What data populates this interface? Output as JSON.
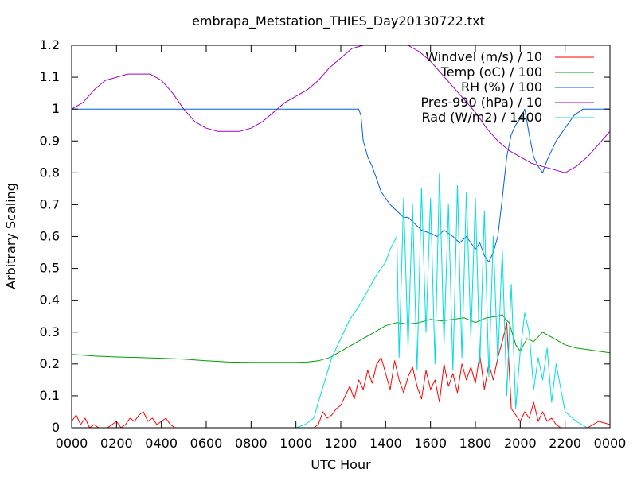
{
  "chart_data": {
    "type": "line",
    "title": "embrapa_Metstation_THIES_Day20130722.txt",
    "xlabel": "UTC Hour",
    "ylabel": "Arbitrary Scaling",
    "xlim": [
      0,
      24
    ],
    "ylim": [
      0,
      1.2
    ],
    "grid": false,
    "legend_position": "top-right",
    "x_ticks": [
      {
        "value": 0,
        "label": "0000"
      },
      {
        "value": 2,
        "label": "0200"
      },
      {
        "value": 4,
        "label": "0400"
      },
      {
        "value": 6,
        "label": "0600"
      },
      {
        "value": 8,
        "label": "0800"
      },
      {
        "value": 10,
        "label": "1000"
      },
      {
        "value": 12,
        "label": "1200"
      },
      {
        "value": 14,
        "label": "1400"
      },
      {
        "value": 16,
        "label": "1600"
      },
      {
        "value": 18,
        "label": "1800"
      },
      {
        "value": 20,
        "label": "2000"
      },
      {
        "value": 22,
        "label": "2200"
      },
      {
        "value": 24,
        "label": "0000"
      }
    ],
    "y_ticks": [
      {
        "value": 0,
        "label": "0"
      },
      {
        "value": 0.1,
        "label": "0.1"
      },
      {
        "value": 0.2,
        "label": "0.2"
      },
      {
        "value": 0.3,
        "label": "0.3"
      },
      {
        "value": 0.4,
        "label": "0.4"
      },
      {
        "value": 0.5,
        "label": "0.5"
      },
      {
        "value": 0.6,
        "label": "0.6"
      },
      {
        "value": 0.7,
        "label": "0.7"
      },
      {
        "value": 0.8,
        "label": "0.8"
      },
      {
        "value": 0.9,
        "label": "0.9"
      },
      {
        "value": 1.0,
        "label": "1"
      },
      {
        "value": 1.1,
        "label": "1.1"
      },
      {
        "value": 1.2,
        "label": "1.2"
      }
    ],
    "series": [
      {
        "name": "Windvel (m/s) / 10",
        "color": "#ff0000",
        "x": [
          0,
          0.2,
          0.4,
          0.6,
          0.8,
          1.0,
          1.2,
          1.4,
          1.6,
          1.8,
          2.0,
          2.2,
          2.4,
          2.6,
          2.8,
          3.0,
          3.2,
          3.4,
          3.6,
          3.8,
          4.0,
          4.2,
          4.4,
          4.6,
          4.8,
          5.0,
          5.5,
          6.0,
          7.0,
          8.0,
          9.0,
          10.0,
          10.6,
          10.8,
          11.0,
          11.2,
          11.4,
          11.6,
          11.8,
          12.0,
          12.2,
          12.4,
          12.6,
          12.8,
          13.0,
          13.2,
          13.4,
          13.6,
          13.8,
          14.0,
          14.2,
          14.4,
          14.6,
          14.8,
          15.0,
          15.2,
          15.4,
          15.6,
          15.8,
          16.0,
          16.2,
          16.4,
          16.6,
          16.8,
          17.0,
          17.2,
          17.4,
          17.6,
          17.8,
          18.0,
          18.2,
          18.4,
          18.6,
          18.8,
          19.0,
          19.2,
          19.4,
          19.6,
          19.8,
          20.0,
          20.2,
          20.4,
          20.6,
          20.8,
          21.0,
          21.2,
          21.4,
          21.6,
          21.8,
          22.0,
          22.5,
          23.0,
          23.5,
          24.0
        ],
        "y": [
          0.02,
          0.04,
          0.01,
          0.03,
          0.0,
          0.01,
          0.0,
          0.0,
          0.0,
          0.01,
          0.02,
          0.0,
          0.01,
          0.03,
          0.02,
          0.04,
          0.05,
          0.02,
          0.03,
          0.01,
          0.02,
          0.03,
          0.01,
          0.0,
          0.0,
          0.0,
          0.0,
          0.0,
          0.0,
          0.0,
          0.0,
          0.0,
          0.0,
          0.0,
          0.01,
          0.05,
          0.03,
          0.04,
          0.06,
          0.07,
          0.1,
          0.13,
          0.09,
          0.15,
          0.12,
          0.18,
          0.14,
          0.2,
          0.22,
          0.17,
          0.12,
          0.21,
          0.15,
          0.11,
          0.16,
          0.19,
          0.13,
          0.09,
          0.18,
          0.12,
          0.15,
          0.08,
          0.2,
          0.13,
          0.17,
          0.11,
          0.2,
          0.15,
          0.19,
          0.14,
          0.23,
          0.12,
          0.2,
          0.15,
          0.22,
          0.27,
          0.33,
          0.06,
          0.04,
          0.02,
          0.05,
          0.03,
          0.08,
          0.02,
          0.05,
          0.02,
          0.03,
          0.01,
          0.0,
          0.0,
          0.0,
          0.0,
          0.02,
          0.01
        ]
      },
      {
        "name": "Temp (oC) / 100",
        "color": "#00a000",
        "x": [
          0,
          1,
          2,
          3,
          4,
          5,
          6,
          7,
          8,
          9,
          10,
          10.5,
          11.0,
          11.5,
          12.0,
          12.5,
          13.0,
          13.5,
          14.0,
          14.5,
          15.0,
          15.5,
          16.0,
          16.5,
          17.0,
          17.5,
          18.0,
          18.5,
          19.0,
          19.2,
          19.35,
          19.5,
          19.8,
          20.0,
          20.3,
          20.6,
          21.0,
          21.5,
          22.0,
          22.5,
          23.0,
          23.5,
          24.0
        ],
        "y": [
          0.23,
          0.225,
          0.222,
          0.22,
          0.218,
          0.215,
          0.21,
          0.206,
          0.205,
          0.205,
          0.205,
          0.206,
          0.21,
          0.22,
          0.24,
          0.26,
          0.28,
          0.3,
          0.32,
          0.33,
          0.325,
          0.33,
          0.34,
          0.335,
          0.34,
          0.345,
          0.33,
          0.345,
          0.35,
          0.355,
          0.34,
          0.33,
          0.26,
          0.24,
          0.28,
          0.27,
          0.3,
          0.28,
          0.26,
          0.25,
          0.245,
          0.24,
          0.235
        ]
      },
      {
        "name": "RH (%) / 100",
        "color": "#0060e0",
        "x": [
          0,
          2,
          4,
          6,
          8,
          10,
          12,
          12.8,
          12.9,
          13.0,
          13.2,
          13.4,
          13.6,
          13.8,
          14.0,
          14.2,
          14.5,
          14.8,
          15.0,
          15.3,
          15.6,
          16.0,
          16.3,
          16.6,
          17.0,
          17.3,
          17.6,
          18.0,
          18.2,
          18.4,
          18.6,
          18.8,
          19.0,
          19.2,
          19.4,
          19.6,
          19.8,
          20.0,
          20.2,
          20.4,
          20.6,
          20.8,
          21.0,
          21.2,
          21.4,
          21.6,
          21.8,
          22.0,
          22.2,
          22.4,
          22.6,
          22.8,
          23.0,
          24.0
        ],
        "y": [
          1.0,
          1.0,
          1.0,
          1.0,
          1.0,
          1.0,
          1.0,
          1.0,
          0.98,
          0.9,
          0.85,
          0.82,
          0.78,
          0.74,
          0.72,
          0.7,
          0.68,
          0.66,
          0.66,
          0.64,
          0.62,
          0.61,
          0.6,
          0.62,
          0.6,
          0.58,
          0.6,
          0.56,
          0.58,
          0.54,
          0.52,
          0.55,
          0.6,
          0.72,
          0.85,
          0.92,
          0.95,
          0.97,
          1.0,
          0.92,
          0.85,
          0.82,
          0.8,
          0.84,
          0.87,
          0.9,
          0.92,
          0.94,
          0.96,
          0.98,
          0.99,
          1.0,
          1.0,
          1.0
        ]
      },
      {
        "name": "Pres-990 (hPa) / 10",
        "color": "#a000c0",
        "x": [
          0,
          0.5,
          1.0,
          1.5,
          2.0,
          2.5,
          3.0,
          3.5,
          4.0,
          4.5,
          5.0,
          5.5,
          6.0,
          6.5,
          7.0,
          7.5,
          8.0,
          8.5,
          9.0,
          9.5,
          10.0,
          10.5,
          11.0,
          11.5,
          12.0,
          12.5,
          13.0,
          13.5,
          14.0,
          14.5,
          15.0,
          15.5,
          16.0,
          16.5,
          17.0,
          17.5,
          18.0,
          18.5,
          19.0,
          19.5,
          20.0,
          20.5,
          21.0,
          21.5,
          22.0,
          22.5,
          23.0,
          23.5,
          24.0
        ],
        "y": [
          1.0,
          1.02,
          1.06,
          1.09,
          1.1,
          1.11,
          1.11,
          1.11,
          1.09,
          1.05,
          1.0,
          0.96,
          0.94,
          0.93,
          0.93,
          0.93,
          0.94,
          0.96,
          0.99,
          1.02,
          1.04,
          1.06,
          1.09,
          1.13,
          1.16,
          1.19,
          1.2,
          1.2,
          1.2,
          1.2,
          1.2,
          1.18,
          1.15,
          1.11,
          1.07,
          1.03,
          0.99,
          0.94,
          0.9,
          0.87,
          0.85,
          0.83,
          0.82,
          0.81,
          0.8,
          0.82,
          0.85,
          0.89,
          0.93
        ]
      },
      {
        "name": "Rad (W/m2) / 1400",
        "color": "#00dddd",
        "x": [
          0,
          5,
          10.0,
          10.4,
          10.8,
          11.0,
          11.3,
          11.6,
          12.0,
          12.4,
          12.8,
          13.2,
          13.6,
          14.0,
          14.2,
          14.5,
          14.6,
          14.8,
          15.0,
          15.2,
          15.4,
          15.6,
          15.8,
          16.0,
          16.2,
          16.4,
          16.6,
          16.8,
          17.0,
          17.2,
          17.4,
          17.6,
          17.8,
          18.0,
          18.2,
          18.4,
          18.6,
          18.8,
          19.0,
          19.2,
          19.4,
          19.6,
          19.8,
          20.0,
          20.2,
          20.4,
          20.6,
          20.8,
          21.0,
          21.2,
          21.4,
          21.6,
          22.0,
          22.5,
          23.0,
          24.0
        ],
        "y": [
          0.0,
          0.0,
          0.0,
          0.01,
          0.03,
          0.08,
          0.15,
          0.22,
          0.28,
          0.34,
          0.38,
          0.43,
          0.48,
          0.52,
          0.56,
          0.6,
          0.22,
          0.72,
          0.25,
          0.7,
          0.18,
          0.75,
          0.3,
          0.72,
          0.2,
          0.8,
          0.26,
          0.7,
          0.18,
          0.76,
          0.22,
          0.74,
          0.28,
          0.72,
          0.2,
          0.68,
          0.16,
          0.6,
          0.2,
          0.56,
          0.1,
          0.45,
          0.06,
          0.24,
          0.36,
          0.3,
          0.12,
          0.22,
          0.15,
          0.25,
          0.08,
          0.2,
          0.05,
          0.02,
          0.0,
          0.0
        ]
      }
    ]
  }
}
